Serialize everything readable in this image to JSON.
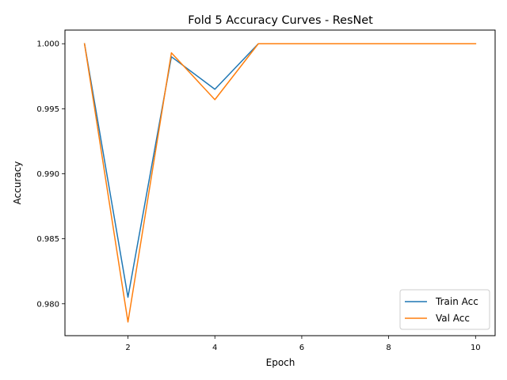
{
  "chart_data": {
    "type": "line",
    "title": "Fold 5 Accuracy Curves - ResNet",
    "xlabel": "Epoch",
    "ylabel": "Accuracy",
    "xlim": [
      0.55,
      10.45
    ],
    "ylim": [
      0.97755,
      1.00105
    ],
    "xticks": [
      2,
      4,
      6,
      8,
      10
    ],
    "xtick_labels": [
      "2",
      "4",
      "6",
      "8",
      "10"
    ],
    "yticks": [
      0.98,
      0.985,
      0.99,
      0.995,
      1.0
    ],
    "ytick_labels": [
      "0.980",
      "0.985",
      "0.990",
      "0.995",
      "1.000"
    ],
    "grid": false,
    "legend_position": "lower-right",
    "x": [
      1,
      2,
      3,
      4,
      5,
      6,
      7,
      8,
      9,
      10
    ],
    "series": [
      {
        "name": "Train Acc",
        "color": "#1f77b4",
        "values": [
          1.0,
          0.9805,
          0.999,
          0.9965,
          1.0,
          1.0,
          1.0,
          1.0,
          1.0,
          1.0
        ]
      },
      {
        "name": "Val Acc",
        "color": "#ff7f0e",
        "values": [
          1.0,
          0.9786,
          0.9993,
          0.9957,
          1.0,
          1.0,
          1.0,
          1.0,
          1.0,
          1.0
        ]
      }
    ]
  }
}
